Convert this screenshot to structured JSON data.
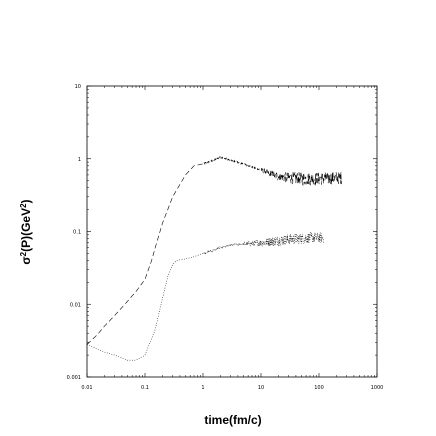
{
  "chart_data": {
    "type": "line",
    "title": "",
    "xlabel": "time(fm/c)",
    "ylabel_parts": {
      "sigma": "σ",
      "sup1": "2",
      "mid": "(P)(GeV",
      "sup2": "2",
      "end": ")"
    },
    "x_scale": "log",
    "y_scale": "log",
    "xlim": [
      0.01,
      1000
    ],
    "ylim": [
      0.001,
      10
    ],
    "x_ticks": [
      {
        "value": 0.01,
        "label": "0.01"
      },
      {
        "value": 0.1,
        "label": "0.1"
      },
      {
        "value": 1,
        "label": "1"
      },
      {
        "value": 10,
        "label": "10"
      },
      {
        "value": 100,
        "label": "100"
      },
      {
        "value": 1000,
        "label": "1000"
      }
    ],
    "y_ticks": [
      {
        "value": 0.001,
        "label": "0.001"
      },
      {
        "value": 0.01,
        "label": "0.01"
      },
      {
        "value": 0.1,
        "label": "0.1"
      },
      {
        "value": 1,
        "label": "1"
      },
      {
        "value": 10,
        "label": "10"
      }
    ],
    "grid": false,
    "series": [
      {
        "style": "dashed",
        "color": "#000000",
        "points": [
          [
            0.01,
            0.0028
          ],
          [
            0.015,
            0.0038
          ],
          [
            0.02,
            0.005
          ],
          [
            0.03,
            0.007
          ],
          [
            0.05,
            0.011
          ],
          [
            0.07,
            0.015
          ],
          [
            0.1,
            0.022
          ],
          [
            0.13,
            0.04
          ],
          [
            0.15,
            0.06
          ],
          [
            0.2,
            0.13
          ],
          [
            0.3,
            0.3
          ],
          [
            0.5,
            0.6
          ],
          [
            0.7,
            0.8
          ],
          [
            1.0,
            0.85
          ],
          [
            1.5,
            0.95
          ],
          [
            2.0,
            1.05
          ],
          [
            3.0,
            0.95
          ],
          [
            5.0,
            0.85
          ],
          [
            10,
            0.7
          ],
          [
            15,
            0.62
          ],
          [
            20,
            0.57
          ],
          [
            30,
            0.55
          ],
          [
            50,
            0.53
          ],
          [
            100,
            0.53
          ],
          [
            150,
            0.54
          ],
          [
            250,
            0.55
          ]
        ],
        "noise_from": 10,
        "noise_amplitude": 0.12
      },
      {
        "style": "dotted",
        "color": "#000000",
        "points": [
          [
            0.01,
            0.0028
          ],
          [
            0.02,
            0.0022
          ],
          [
            0.03,
            0.002
          ],
          [
            0.05,
            0.0017
          ],
          [
            0.07,
            0.0017
          ],
          [
            0.1,
            0.002
          ],
          [
            0.15,
            0.0045
          ],
          [
            0.2,
            0.012
          ],
          [
            0.25,
            0.025
          ],
          [
            0.3,
            0.035
          ],
          [
            0.35,
            0.04
          ],
          [
            0.5,
            0.042
          ],
          [
            0.7,
            0.045
          ],
          [
            1.0,
            0.05
          ],
          [
            1.5,
            0.055
          ],
          [
            2.0,
            0.06
          ],
          [
            3.0,
            0.065
          ],
          [
            5.0,
            0.067
          ],
          [
            10,
            0.07
          ],
          [
            20,
            0.075
          ],
          [
            30,
            0.078
          ],
          [
            50,
            0.08
          ],
          [
            80,
            0.082
          ],
          [
            120,
            0.082
          ]
        ],
        "noise_from": 5,
        "noise_amplitude": 0.1
      }
    ]
  }
}
